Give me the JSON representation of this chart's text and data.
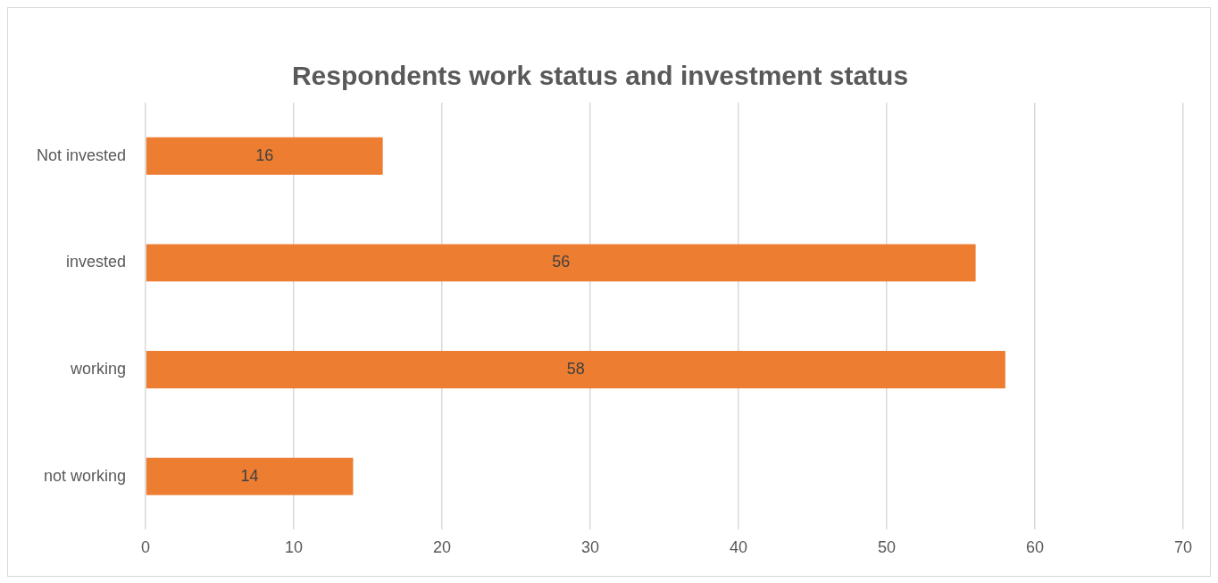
{
  "chart_data": {
    "type": "bar",
    "orientation": "horizontal",
    "title": "Respondents work status and investment status",
    "categories": [
      "Not invested",
      "invested",
      "working",
      "not working"
    ],
    "values": [
      16,
      56,
      58,
      14
    ],
    "color": "#ed7d31",
    "xlim": [
      0,
      70
    ],
    "xticks": [
      0,
      10,
      20,
      30,
      40,
      50,
      60,
      70
    ],
    "grid": "x",
    "data_labels": true,
    "legend": false
  }
}
